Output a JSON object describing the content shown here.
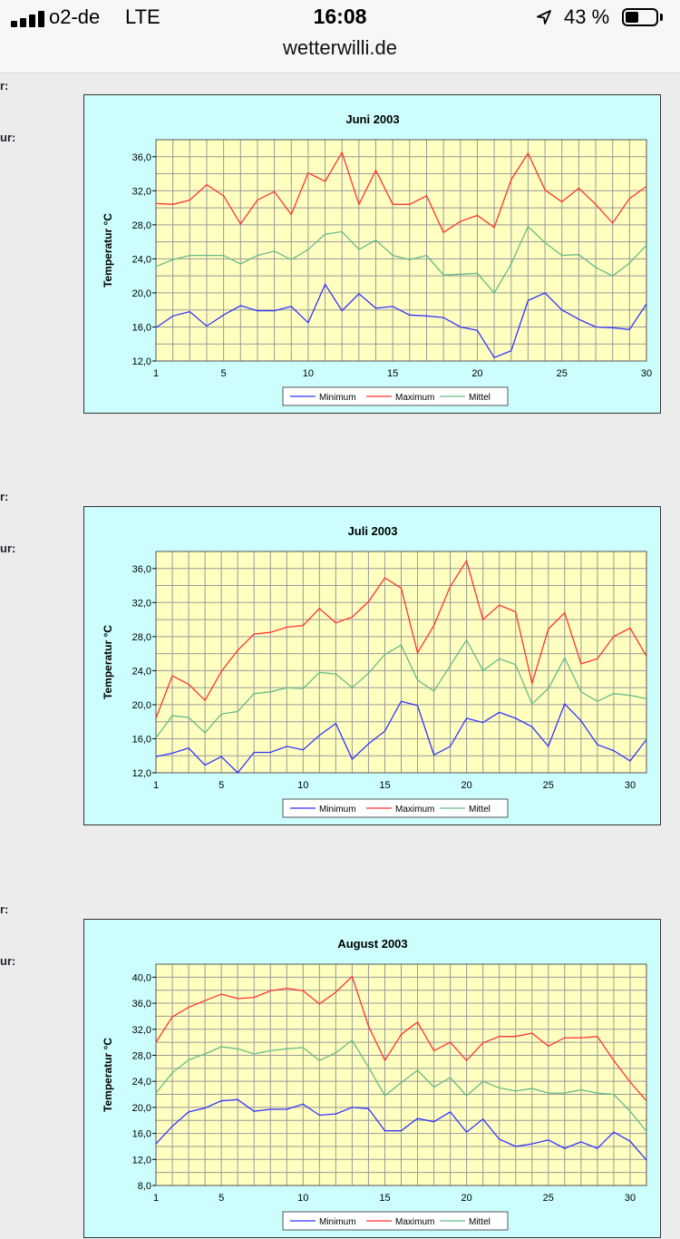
{
  "status": {
    "carrier": "o2-de",
    "network": "LTE",
    "time": "16:08",
    "battery": "43 %",
    "url": "wetterwilli.de"
  },
  "side_labels": [
    "r:",
    "ur:",
    "r:",
    "ur:",
    "r:",
    "ur:"
  ],
  "colors": {
    "plot_bg": "#ffffc0",
    "box_bg": "#ccfefe",
    "grid": "#999999",
    "min": "#3333ff",
    "max": "#ff3333",
    "mean": "#66bb88"
  },
  "chart_data": [
    {
      "type": "line",
      "title": "Juni 2003",
      "ylabel": "Temperatur °C",
      "ylim": [
        12,
        38
      ],
      "xlim": [
        1,
        30
      ],
      "yticks": [
        "36,0",
        "32,0",
        "28,0",
        "24,0",
        "20,0",
        "16,0",
        "12,0"
      ],
      "xticks": [
        "1",
        "5",
        "10",
        "15",
        "20",
        "25",
        "30"
      ],
      "legend": [
        "Minimum",
        "Maximum",
        "Mittel"
      ],
      "x": [
        1,
        2,
        3,
        4,
        5,
        6,
        7,
        8,
        9,
        10,
        11,
        12,
        13,
        14,
        15,
        16,
        17,
        18,
        19,
        20,
        21,
        22,
        23,
        24,
        25,
        26,
        27,
        28,
        29,
        30
      ],
      "series": [
        {
          "name": "Minimum",
          "values": [
            15.9,
            17.3,
            17.8,
            16.1,
            17.4,
            18.5,
            17.9,
            17.9,
            18.4,
            16.5,
            21.0,
            17.9,
            19.9,
            18.2,
            18.4,
            17.4,
            17.3,
            17.1,
            16.0,
            15.6,
            12.4,
            13.2,
            19.1,
            20.0,
            18.0,
            16.9,
            16.0,
            15.9,
            15.7,
            18.7
          ]
        },
        {
          "name": "Maximum",
          "values": [
            30.5,
            30.4,
            30.9,
            32.7,
            31.4,
            28.1,
            30.9,
            31.9,
            29.2,
            34.1,
            33.1,
            36.5,
            30.4,
            34.4,
            30.4,
            30.4,
            31.4,
            27.1,
            28.4,
            29.1,
            27.7,
            33.3,
            36.4,
            32.1,
            30.7,
            32.3,
            30.4,
            28.2,
            31.1,
            32.5
          ]
        },
        {
          "name": "Mittel",
          "values": [
            23.1,
            23.9,
            24.4,
            24.4,
            24.4,
            23.4,
            24.4,
            24.9,
            23.9,
            25.1,
            26.9,
            27.2,
            25.1,
            26.2,
            24.4,
            23.9,
            24.4,
            22.1,
            22.2,
            22.3,
            20.0,
            23.4,
            27.8,
            25.9,
            24.4,
            24.5,
            23.0,
            22.0,
            23.5,
            25.6
          ]
        }
      ]
    },
    {
      "type": "line",
      "title": "Juli 2003",
      "ylabel": "Temperatur °C",
      "ylim": [
        12,
        38
      ],
      "xlim": [
        1,
        31
      ],
      "yticks": [
        "36,0",
        "32,0",
        "28,0",
        "24,0",
        "20,0",
        "16,0",
        "12,0"
      ],
      "xticks": [
        "1",
        "5",
        "10",
        "15",
        "20",
        "25",
        "30"
      ],
      "legend": [
        "Minimum",
        "Maximum",
        "Mittel"
      ],
      "x": [
        1,
        2,
        3,
        4,
        5,
        6,
        7,
        8,
        9,
        10,
        11,
        12,
        13,
        14,
        15,
        16,
        17,
        18,
        19,
        20,
        21,
        22,
        23,
        24,
        25,
        26,
        27,
        28,
        29,
        30,
        31
      ],
      "series": [
        {
          "name": "Minimum",
          "values": [
            13.9,
            14.3,
            14.9,
            12.9,
            13.9,
            12.0,
            14.4,
            14.4,
            15.1,
            14.7,
            16.4,
            17.8,
            13.6,
            15.4,
            16.9,
            20.4,
            19.9,
            14.1,
            15.1,
            18.4,
            17.9,
            19.1,
            18.4,
            17.4,
            15.1,
            20.1,
            18.1,
            15.3,
            14.6,
            13.4,
            15.9
          ]
        },
        {
          "name": "Maximum",
          "values": [
            18.4,
            23.4,
            22.4,
            20.5,
            23.9,
            26.4,
            28.3,
            28.5,
            29.1,
            29.3,
            31.3,
            29.6,
            30.3,
            32.1,
            34.9,
            33.7,
            26.1,
            29.3,
            33.9,
            36.9,
            30.0,
            31.7,
            30.9,
            22.5,
            28.9,
            30.8,
            24.8,
            25.4,
            28.0,
            29.0,
            25.7
          ]
        },
        {
          "name": "Mittel",
          "values": [
            16.1,
            18.7,
            18.5,
            16.7,
            18.9,
            19.2,
            21.3,
            21.5,
            22.0,
            21.9,
            23.8,
            23.6,
            22.0,
            23.7,
            25.9,
            27.0,
            22.9,
            21.6,
            24.6,
            27.6,
            24.0,
            25.4,
            24.7,
            20.1,
            21.9,
            25.5,
            21.5,
            20.4,
            21.3,
            21.1,
            20.7
          ]
        }
      ]
    },
    {
      "type": "line",
      "title": "August 2003",
      "ylabel": "Temperatur °C",
      "ylim": [
        8,
        42
      ],
      "xlim": [
        1,
        31
      ],
      "yticks": [
        "40,0",
        "36,0",
        "32,0",
        "28,0",
        "24,0",
        "20,0",
        "16,0",
        "12,0",
        "8,0"
      ],
      "xticks": [
        "1",
        "5",
        "10",
        "15",
        "20",
        "25",
        "30"
      ],
      "legend": [
        "Minimum",
        "Maximum",
        "Mittel"
      ],
      "x": [
        1,
        2,
        3,
        4,
        5,
        6,
        7,
        8,
        9,
        10,
        11,
        12,
        13,
        14,
        15,
        16,
        17,
        18,
        19,
        20,
        21,
        22,
        23,
        24,
        25,
        26,
        27,
        28,
        29,
        30,
        31
      ],
      "series": [
        {
          "name": "Minimum",
          "values": [
            14.4,
            17.1,
            19.3,
            19.9,
            21.0,
            21.2,
            19.4,
            19.7,
            19.7,
            20.5,
            18.8,
            19.0,
            20.0,
            19.8,
            16.4,
            16.4,
            18.3,
            17.8,
            19.3,
            16.2,
            18.2,
            15.1,
            14.0,
            14.4,
            15.0,
            13.7,
            14.7,
            13.7,
            16.2,
            14.8,
            11.9
          ]
        },
        {
          "name": "Maximum",
          "values": [
            30.0,
            33.9,
            35.4,
            36.4,
            37.4,
            36.7,
            36.9,
            37.9,
            38.3,
            37.9,
            35.9,
            37.7,
            40.1,
            32.5,
            27.2,
            31.2,
            33.1,
            28.7,
            30.0,
            27.2,
            29.9,
            30.9,
            30.9,
            31.4,
            29.4,
            30.7,
            30.7,
            30.9,
            27.2,
            23.9,
            21.0
          ]
        },
        {
          "name": "Mittel",
          "values": [
            22.2,
            25.3,
            27.3,
            28.2,
            29.3,
            29.0,
            28.2,
            28.7,
            29.0,
            29.2,
            27.2,
            28.4,
            30.3,
            26.2,
            21.8,
            23.8,
            25.7,
            23.1,
            24.6,
            21.8,
            24.0,
            23.0,
            22.5,
            22.9,
            22.2,
            22.2,
            22.7,
            22.2,
            22.0,
            19.4,
            16.3
          ]
        }
      ]
    }
  ]
}
